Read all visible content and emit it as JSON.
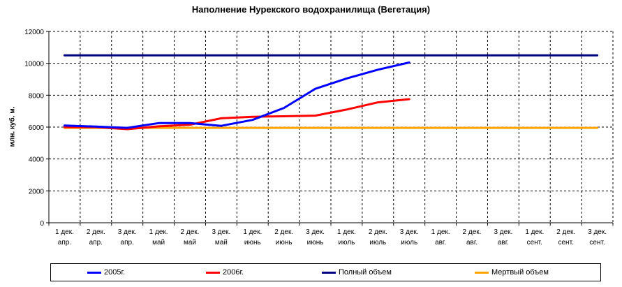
{
  "chart_data": {
    "type": "line",
    "title": "Наполнение Нурекского водохранилища (Вегетация)",
    "xlabel": "",
    "ylabel": "млн. куб. м.",
    "ylim": [
      0,
      12000
    ],
    "yticks": [
      0,
      2000,
      4000,
      6000,
      8000,
      10000,
      12000
    ],
    "grid": true,
    "legend_position": "bottom",
    "categories": [
      {
        "top": "1 дек.",
        "bottom": "апр."
      },
      {
        "top": "2 дек.",
        "bottom": "апр."
      },
      {
        "top": "3 дек.",
        "bottom": "апр."
      },
      {
        "top": "1 дек.",
        "bottom": "май"
      },
      {
        "top": "2 дек.",
        "bottom": "май"
      },
      {
        "top": "3 дек.",
        "bottom": "май"
      },
      {
        "top": "1 дек.",
        "bottom": "июнь"
      },
      {
        "top": "2 дек.",
        "bottom": "июнь"
      },
      {
        "top": "3 дек.",
        "bottom": "июнь"
      },
      {
        "top": "1 дек.",
        "bottom": "июль"
      },
      {
        "top": "2 дек.",
        "bottom": "июль"
      },
      {
        "top": "3 дек.",
        "bottom": "июль"
      },
      {
        "top": "1 дек.",
        "bottom": "авг."
      },
      {
        "top": "2 дек.",
        "bottom": "авг."
      },
      {
        "top": "3 дек.",
        "bottom": "авг."
      },
      {
        "top": "1 дек.",
        "bottom": "сент."
      },
      {
        "top": "2 дек.",
        "bottom": "сент."
      },
      {
        "top": "3 дек.",
        "bottom": "сент."
      }
    ],
    "series": [
      {
        "name": "2005г.",
        "color": "#0000ff",
        "values": [
          6100,
          6030,
          5950,
          6250,
          6250,
          6080,
          6450,
          7200,
          8400,
          9050,
          9600,
          10050,
          null,
          null,
          null,
          null,
          null,
          null
        ]
      },
      {
        "name": "2006г.",
        "color": "#ff0000",
        "values": [
          6000,
          6000,
          5870,
          6050,
          6150,
          6550,
          6650,
          6680,
          6720,
          7100,
          7550,
          7750,
          null,
          null,
          null,
          null,
          null,
          null
        ]
      },
      {
        "name": "Полный объем",
        "color": "#000080",
        "values": [
          10500,
          10500,
          10500,
          10500,
          10500,
          10500,
          10500,
          10500,
          10500,
          10500,
          10500,
          10500,
          10500,
          10500,
          10500,
          10500,
          10500,
          10500
        ]
      },
      {
        "name": "Мертвый объем",
        "color": "#ffa500",
        "values": [
          5950,
          5950,
          5950,
          5950,
          5950,
          5950,
          5950,
          5950,
          5950,
          5950,
          5950,
          5950,
          5950,
          5950,
          5950,
          5950,
          5950,
          5950
        ]
      }
    ]
  }
}
